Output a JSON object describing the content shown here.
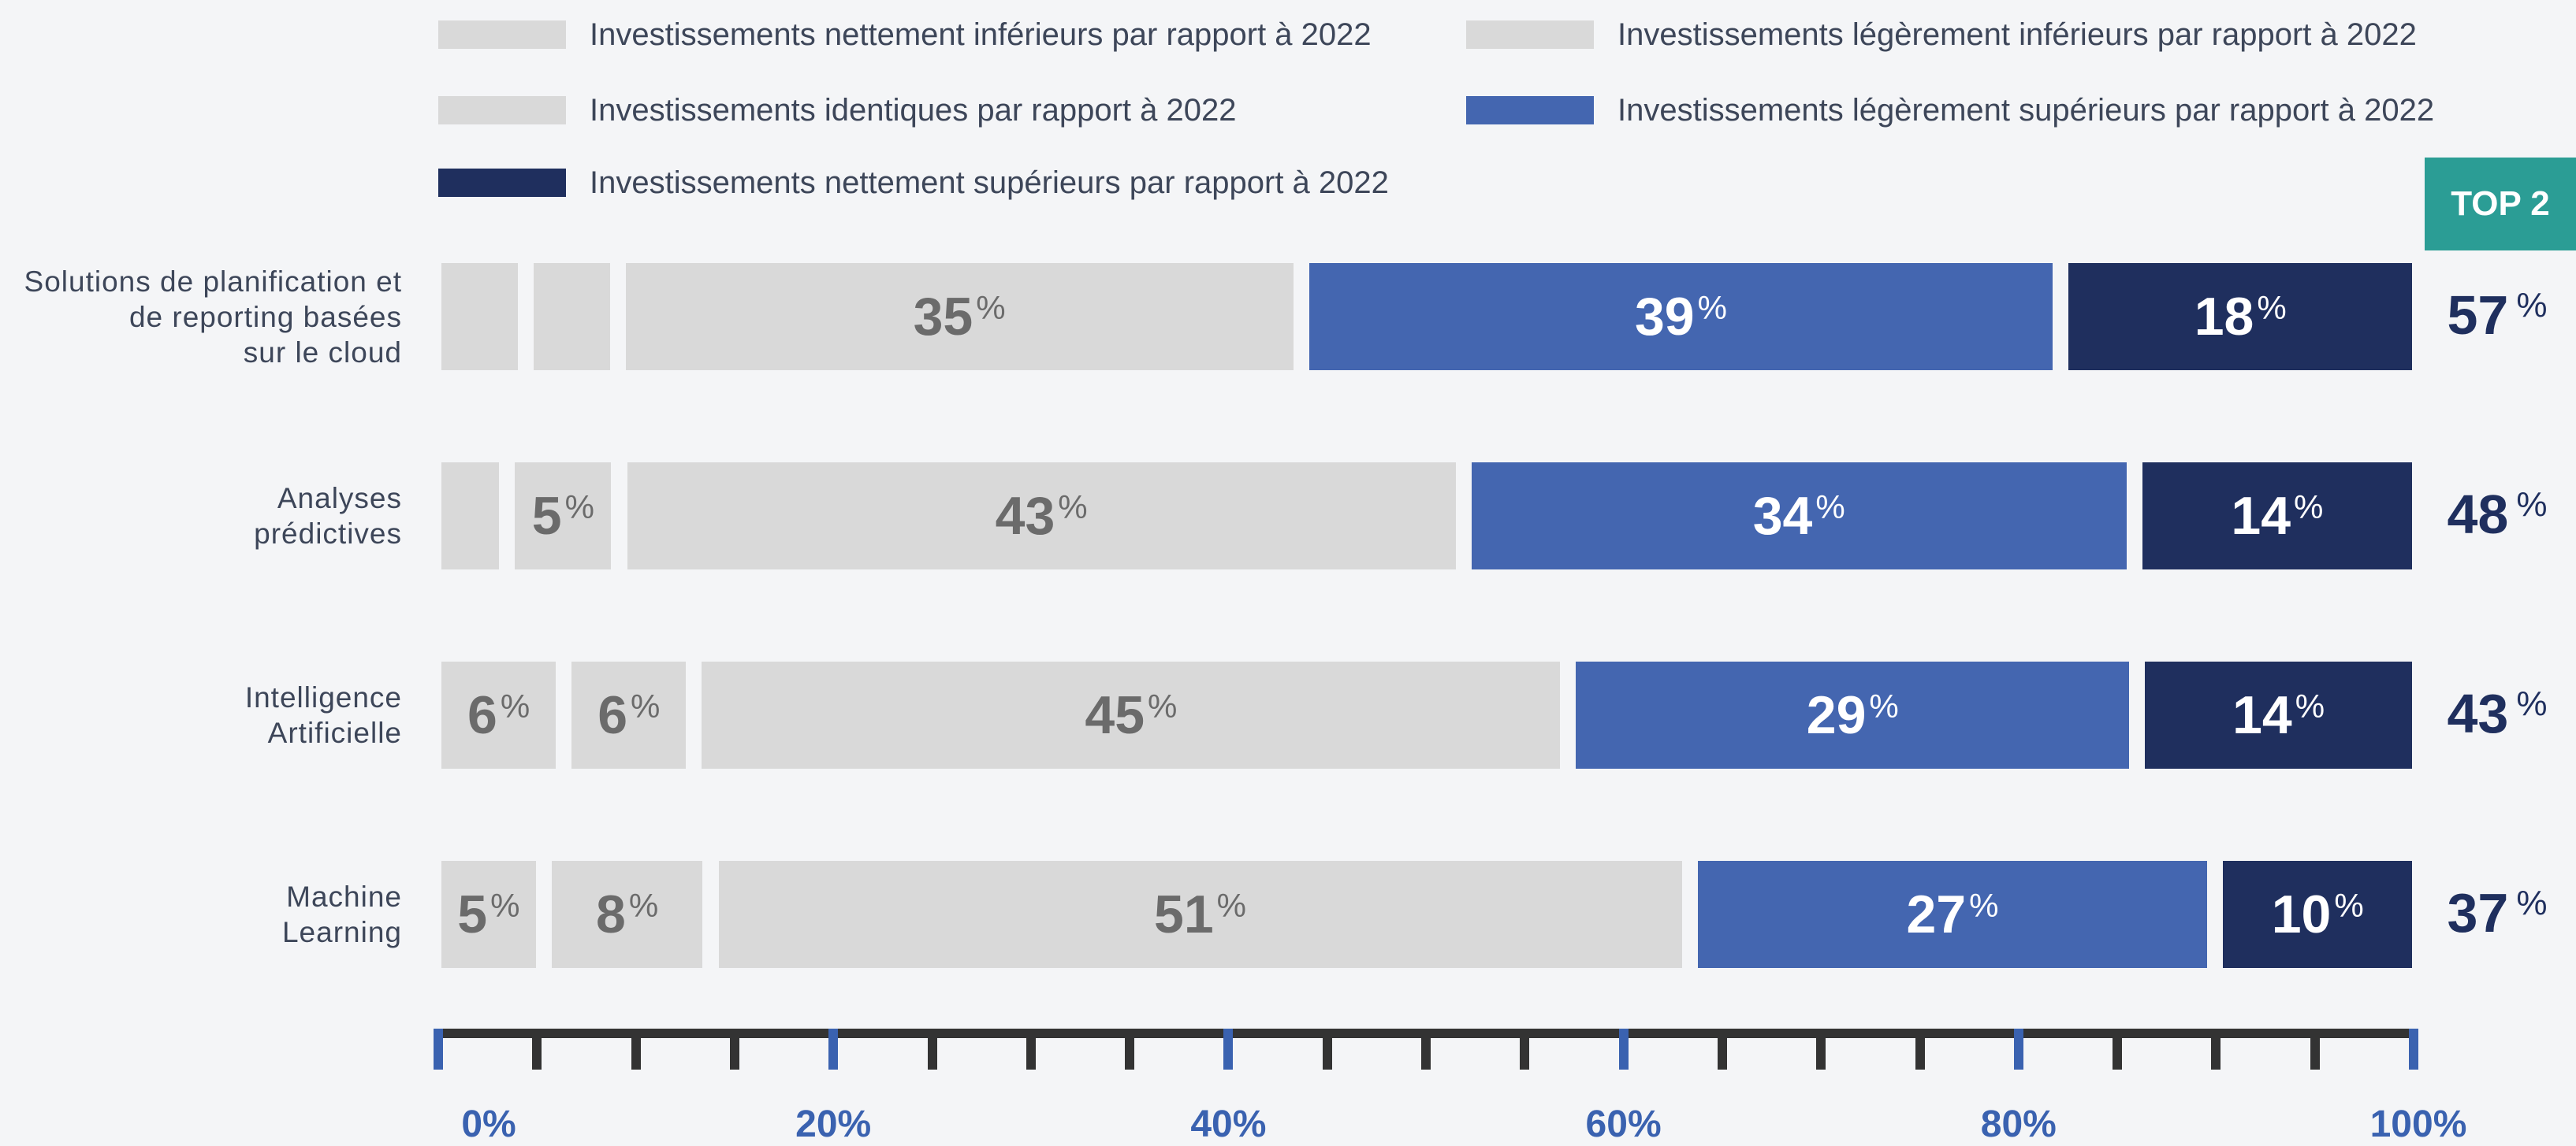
{
  "chart_data": {
    "type": "bar",
    "stacked": true,
    "orientation": "horizontal",
    "categories": [
      "Solutions de planification et de reporting basées sur le cloud",
      "Analyses prédictives",
      "Intelligence Artificielle",
      "Machine Learning"
    ],
    "category_lines": [
      [
        "Solutions de planification et",
        "de reporting basées",
        "sur le cloud"
      ],
      [
        "Analyses",
        "prédictives"
      ],
      [
        "Intelligence",
        "Artificielle"
      ],
      [
        "Machine",
        "Learning"
      ]
    ],
    "series": [
      {
        "name": "Investissements nettement inférieurs par rapport à 2022",
        "color": "#d9d9d9",
        "text_color": "#6b6b6b",
        "values": [
          4,
          3,
          6,
          5
        ],
        "labels": [
          "",
          "",
          "6",
          "5"
        ]
      },
      {
        "name": "Investissements légèrement inférieurs par rapport à 2022",
        "color": "#d9d9d9",
        "text_color": "#6b6b6b",
        "values": [
          4,
          5,
          6,
          8
        ],
        "labels": [
          "",
          "5",
          "6",
          "8"
        ]
      },
      {
        "name": "Investissements identiques par rapport à 2022",
        "color": "#d9d9d9",
        "text_color": "#6b6b6b",
        "values": [
          35,
          43,
          45,
          51
        ],
        "labels": [
          "35",
          "43",
          "45",
          "51"
        ]
      },
      {
        "name": "Investissements légèrement supérieurs par rapport à 2022",
        "color": "#4466b0",
        "text_color": "#ffffff",
        "values": [
          39,
          34,
          29,
          27
        ],
        "labels": [
          "39",
          "34",
          "29",
          "27"
        ]
      },
      {
        "name": "Investissements nettement supérieurs par rapport à 2022",
        "color": "#1f2f5e",
        "text_color": "#ffffff",
        "values": [
          18,
          14,
          14,
          10
        ],
        "labels": [
          "18",
          "14",
          "14",
          "10"
        ]
      }
    ],
    "unit": "%",
    "top2": {
      "header": "TOP 2",
      "values": [
        "57",
        "48",
        "43",
        "37"
      ],
      "color": "#2b9d95"
    },
    "xlim": [
      0,
      100
    ],
    "x_ticks": [
      "0%",
      "20%",
      "40%",
      "60%",
      "80%",
      "100%"
    ],
    "legend_placement": "top"
  }
}
